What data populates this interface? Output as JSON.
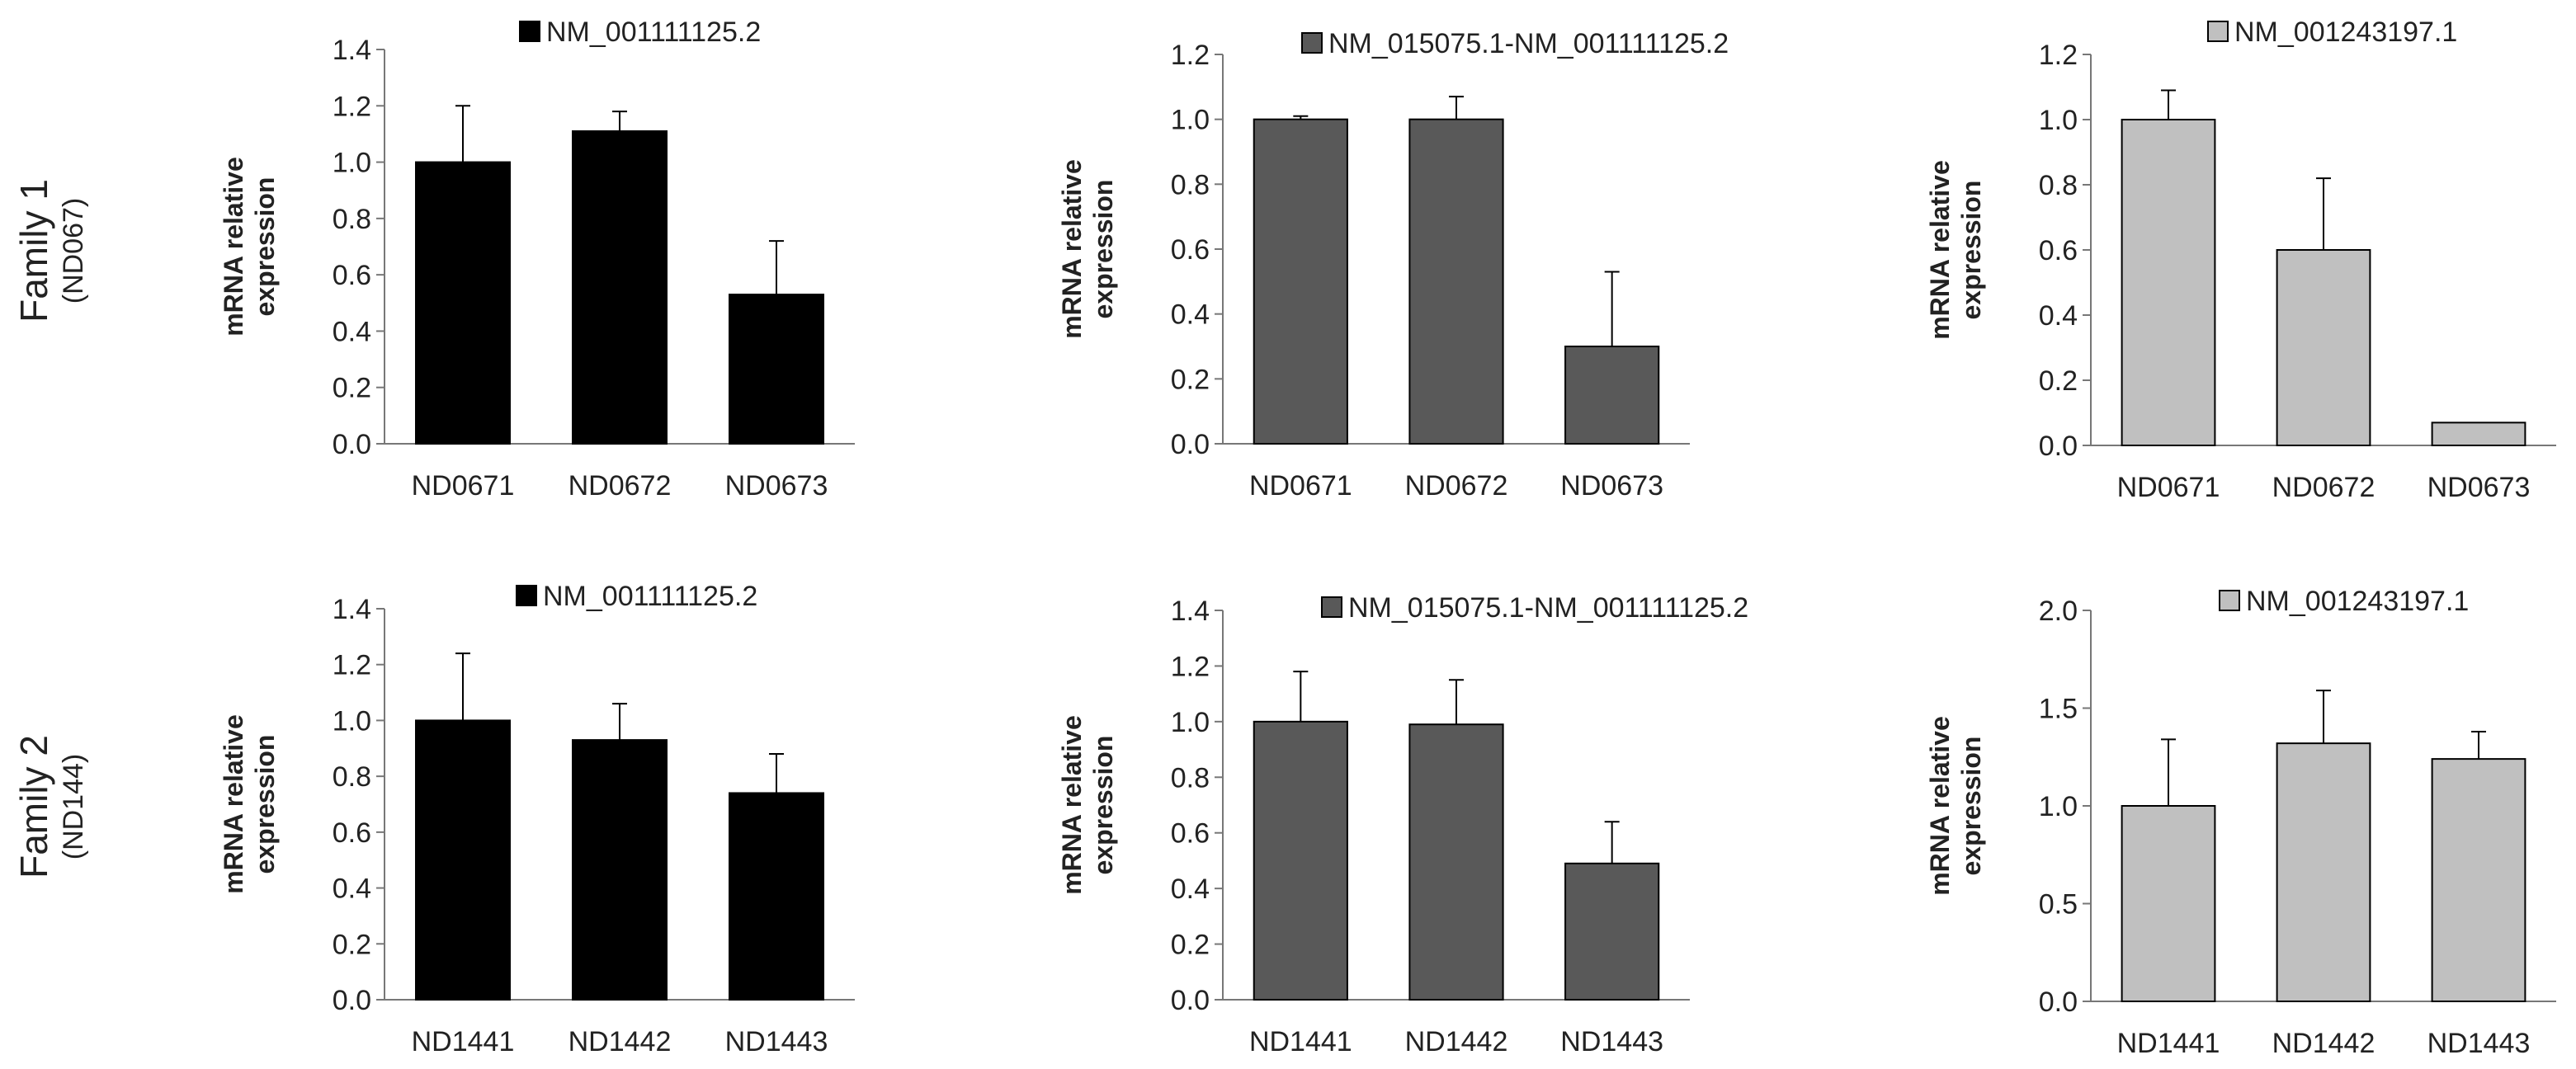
{
  "rows": [
    {
      "title": "Family 1",
      "subtitle": "(ND067)"
    },
    {
      "title": "Family 2",
      "subtitle": "(ND144)"
    }
  ],
  "colors": {
    "black": "#000000",
    "dark_gray": "#595959",
    "light_gray": "#c0c0c0"
  },
  "chart_data": [
    {
      "type": "bar",
      "row": "Family 1",
      "categories": [
        "ND0671",
        "ND0672",
        "ND0673"
      ],
      "series": [
        {
          "name": "NM_001111125.2",
          "values": [
            1.0,
            1.11,
            0.53
          ],
          "errors": [
            0.2,
            0.07,
            0.19
          ],
          "color": "#000000"
        }
      ],
      "ylabel": "mRNA relative expression",
      "ylim": [
        0,
        1.4
      ],
      "yticks": [
        "0.0",
        "0.2",
        "0.4",
        "0.6",
        "0.8",
        "1.0",
        "1.2",
        "1.4"
      ],
      "legend": "top"
    },
    {
      "type": "bar",
      "row": "Family 1",
      "categories": [
        "ND0671",
        "ND0672",
        "ND0673"
      ],
      "series": [
        {
          "name": "NM_015075.1-NM_001111125.2",
          "values": [
            1.0,
            1.0,
            0.3
          ],
          "errors": [
            0.01,
            0.07,
            0.23
          ],
          "color": "#595959"
        }
      ],
      "ylabel": "mRNA relative expression",
      "ylim": [
        0,
        1.2
      ],
      "yticks": [
        "0.0",
        "0.2",
        "0.4",
        "0.6",
        "0.8",
        "1.0",
        "1.2"
      ],
      "legend": "top"
    },
    {
      "type": "bar",
      "row": "Family 1",
      "categories": [
        "ND0671",
        "ND0672",
        "ND0673"
      ],
      "series": [
        {
          "name": "NM_001243197.1",
          "values": [
            1.0,
            0.6,
            0.07
          ],
          "errors": [
            0.09,
            0.22,
            0.0
          ],
          "color": "#c0c0c0"
        }
      ],
      "ylabel": "mRNA relative expression",
      "ylim": [
        0,
        1.2
      ],
      "yticks": [
        "0.0",
        "0.2",
        "0.4",
        "0.6",
        "0.8",
        "1.0",
        "1.2"
      ],
      "legend": "top"
    },
    {
      "type": "bar",
      "row": "Family 2",
      "categories": [
        "ND1441",
        "ND1442",
        "ND1443"
      ],
      "series": [
        {
          "name": "NM_001111125.2",
          "values": [
            1.0,
            0.93,
            0.74
          ],
          "errors": [
            0.24,
            0.13,
            0.14
          ],
          "color": "#000000"
        }
      ],
      "ylabel": "mRNA relative expression",
      "ylim": [
        0,
        1.4
      ],
      "yticks": [
        "0.0",
        "0.2",
        "0.4",
        "0.6",
        "0.8",
        "1.0",
        "1.2",
        "1.4"
      ],
      "legend": "top"
    },
    {
      "type": "bar",
      "row": "Family 2",
      "categories": [
        "ND1441",
        "ND1442",
        "ND1443"
      ],
      "series": [
        {
          "name": "NM_015075.1-NM_001111125.2",
          "values": [
            1.0,
            0.99,
            0.49
          ],
          "errors": [
            0.18,
            0.16,
            0.15
          ],
          "color": "#595959"
        }
      ],
      "ylabel": "mRNA relative expression",
      "ylim": [
        0,
        1.4
      ],
      "yticks": [
        "0.0",
        "0.2",
        "0.4",
        "0.6",
        "0.8",
        "1.0",
        "1.2",
        "1.4"
      ],
      "legend": "top"
    },
    {
      "type": "bar",
      "row": "Family 2",
      "categories": [
        "ND1441",
        "ND1442",
        "ND1443"
      ],
      "series": [
        {
          "name": "NM_001243197.1",
          "values": [
            1.0,
            1.32,
            1.24
          ],
          "errors": [
            0.34,
            0.27,
            0.14
          ],
          "color": "#c0c0c0"
        }
      ],
      "ylabel": "mRNA relative expression",
      "ylim": [
        0,
        2.0
      ],
      "yticks": [
        "0.0",
        "0.5",
        "1.0",
        "1.5",
        "2.0"
      ],
      "legend": "top"
    }
  ]
}
